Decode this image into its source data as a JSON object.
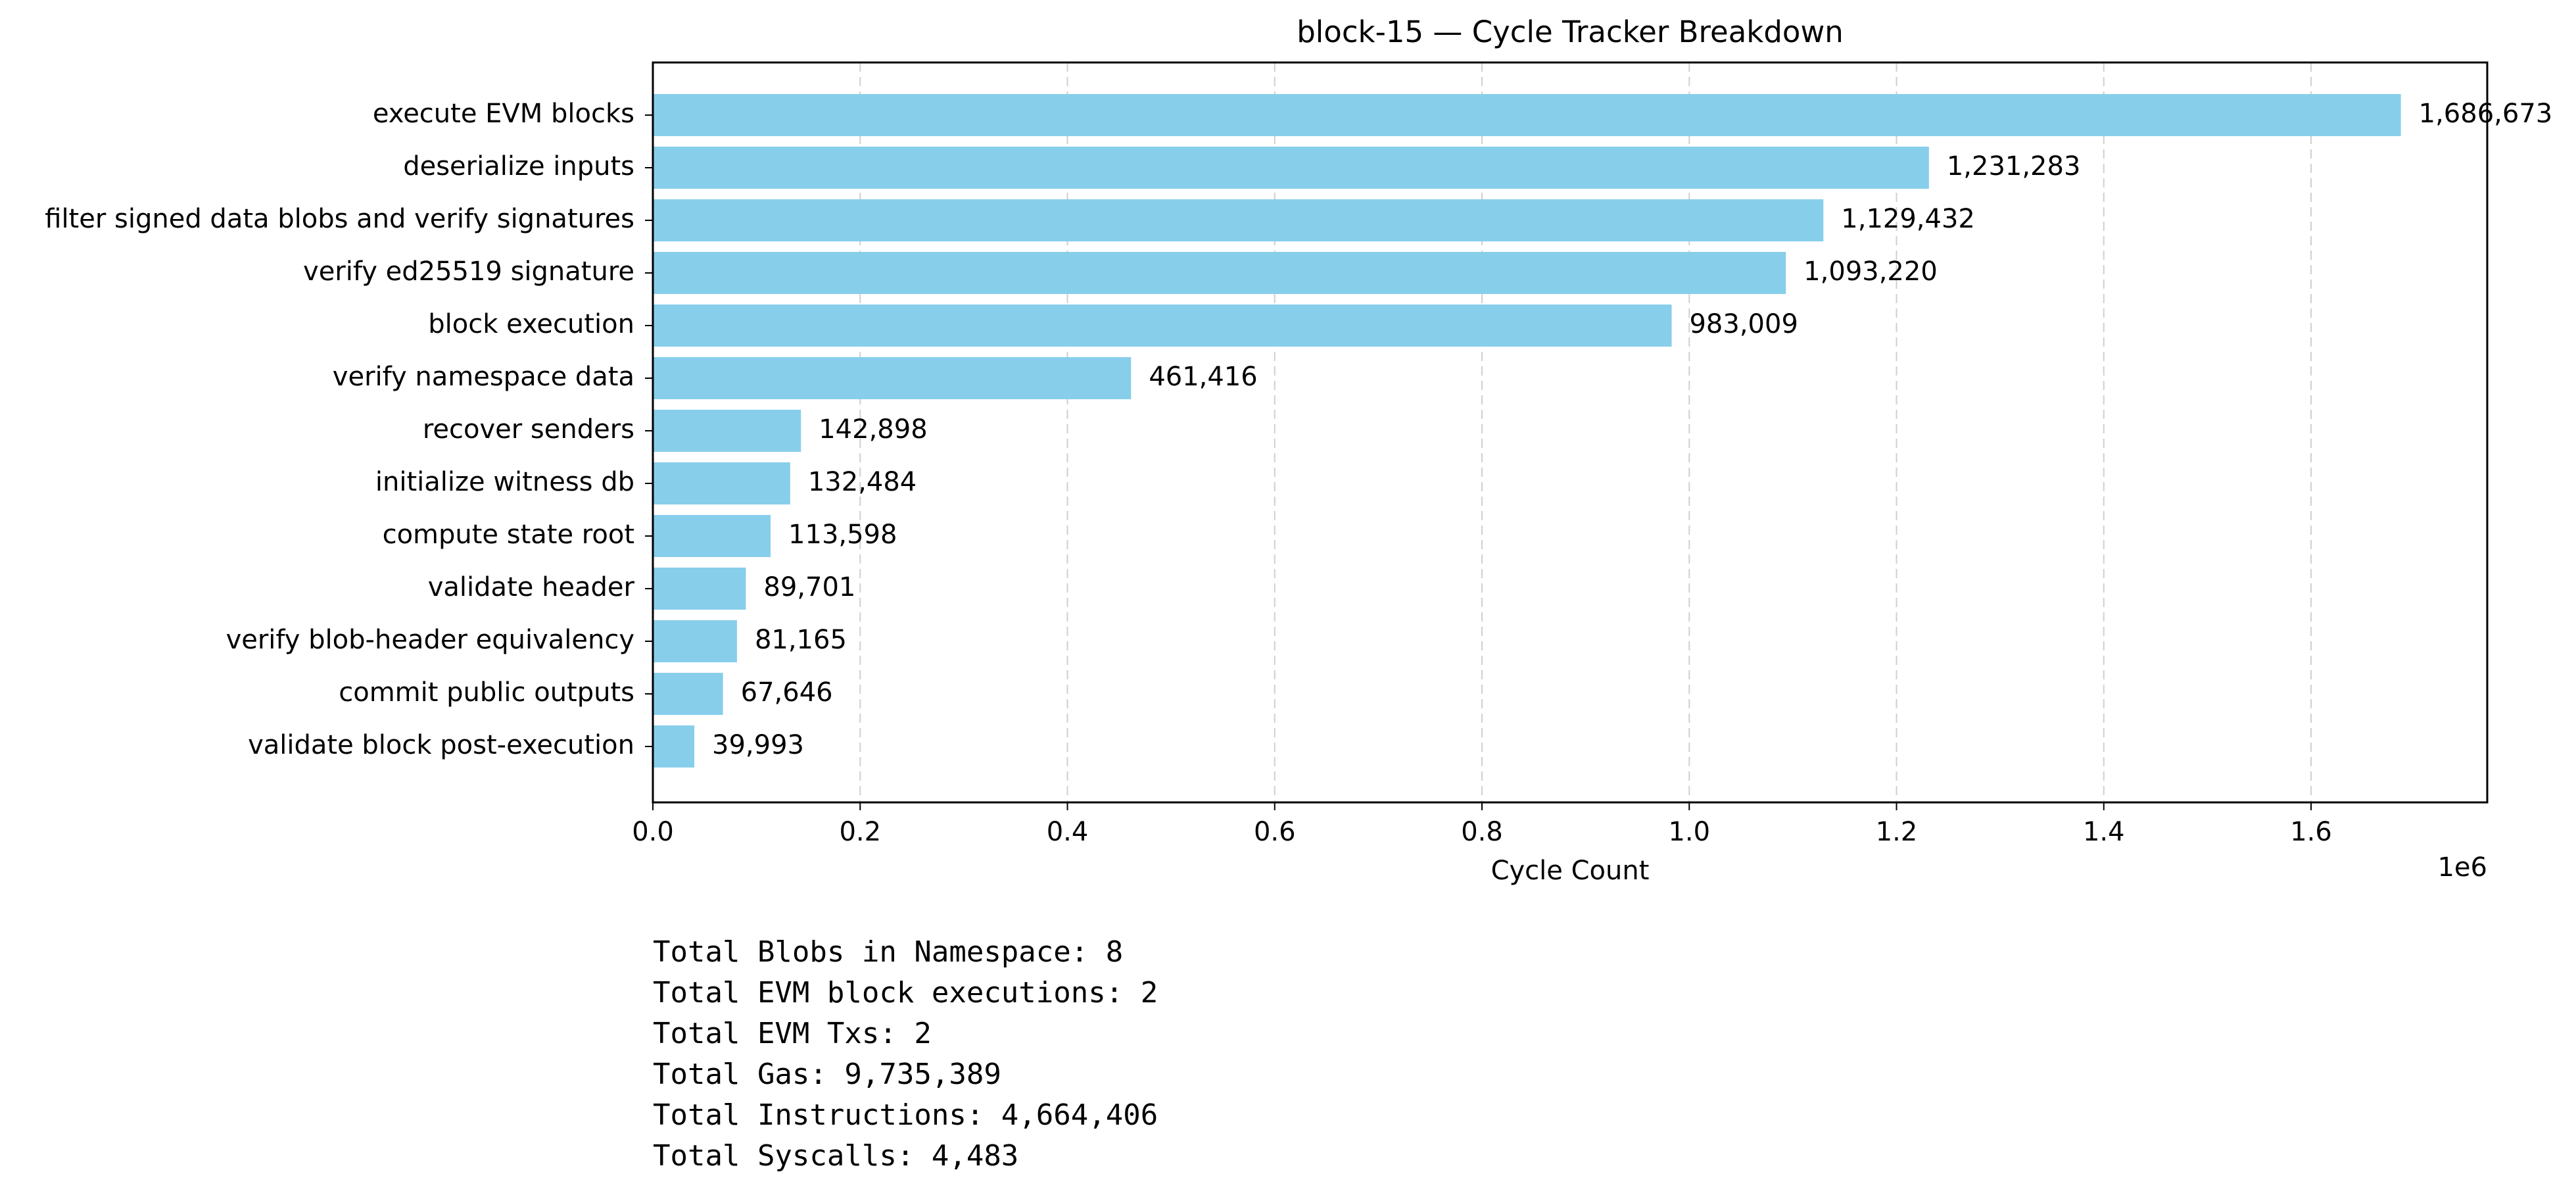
{
  "chart_data": {
    "type": "bar",
    "orientation": "horizontal",
    "title": "block-15 — Cycle Tracker Breakdown",
    "xlabel": "Cycle Count",
    "ylabel": "",
    "x_scale_label": "1e6",
    "xlim": [
      0,
      1770000
    ],
    "x_ticks": [
      0,
      200000,
      400000,
      600000,
      800000,
      1000000,
      1200000,
      1400000,
      1600000
    ],
    "x_tick_labels": [
      "0.0",
      "0.2",
      "0.4",
      "0.6",
      "0.8",
      "1.0",
      "1.2",
      "1.4",
      "1.6"
    ],
    "grid": "x-dashed",
    "bar_color": "#87ceeb",
    "categories": [
      "execute EVM blocks",
      "deserialize inputs",
      "filter signed data blobs and verify signatures",
      "verify ed25519 signature",
      "block execution",
      "verify namespace data",
      "recover senders",
      "initialize witness db",
      "compute state root",
      "validate header",
      "verify blob-header equivalency",
      "commit public outputs",
      "validate block post-execution"
    ],
    "values": [
      1686673,
      1231283,
      1129432,
      1093220,
      983009,
      461416,
      142898,
      132484,
      113598,
      89701,
      81165,
      67646,
      39993
    ],
    "value_labels": [
      "1,686,673",
      "1,231,283",
      "1,129,432",
      "1,093,220",
      "983,009",
      "461,416",
      "142,898",
      "132,484",
      "113,598",
      "89,701",
      "81,165",
      "67,646",
      "39,993"
    ]
  },
  "summary": {
    "lines": [
      "Total Blobs in Namespace: 8",
      "Total EVM block executions: 2",
      "Total EVM Txs: 2",
      "Total Gas: 9,735,389",
      "Total Instructions: 4,664,406",
      "Total Syscalls: 4,483"
    ]
  }
}
